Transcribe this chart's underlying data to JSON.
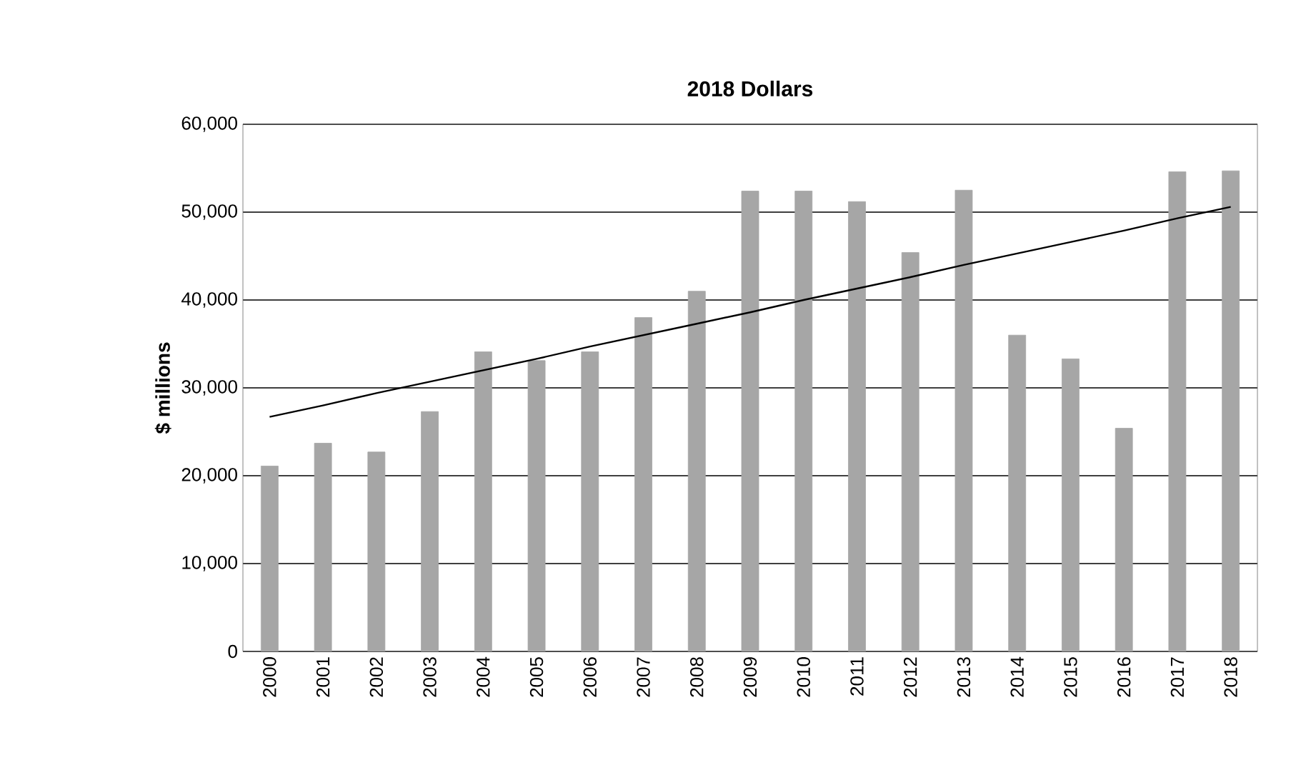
{
  "chart_data": {
    "type": "bar",
    "title": "2018 Dollars",
    "ylabel": "$ millions",
    "categories": [
      "2000",
      "2001",
      "2002",
      "2003",
      "2004",
      "2005",
      "2006",
      "2007",
      "2008",
      "2009",
      "2010",
      "2011",
      "2012",
      "2013",
      "2014",
      "2015",
      "2016",
      "2017",
      "2018"
    ],
    "series": [
      {
        "type": "bar",
        "color": "#a6a6a6",
        "values": [
          21100,
          23700,
          22700,
          27300,
          34100,
          33100,
          34100,
          38000,
          41000,
          52400,
          52400,
          51200,
          45400,
          52500,
          36000,
          33300,
          25400,
          54600,
          54700
        ]
      },
      {
        "type": "line",
        "color": "#000000",
        "values": [
          26700,
          28000,
          29400,
          30700,
          32000,
          33300,
          34700,
          36000,
          37300,
          38600,
          40000,
          41300,
          42600,
          44000,
          45300,
          46600,
          47900,
          49300,
          50600
        ]
      }
    ],
    "ylim": [
      0,
      60000
    ],
    "yticks": [
      {
        "value": 0,
        "label": "0"
      },
      {
        "value": 10000,
        "label": "10,000"
      },
      {
        "value": 20000,
        "label": "20,000"
      },
      {
        "value": 30000,
        "label": "30,000"
      },
      {
        "value": 40000,
        "label": "40,000"
      },
      {
        "value": 50000,
        "label": "50,000"
      },
      {
        "value": 60000,
        "label": "60,000"
      }
    ],
    "grid": "y"
  }
}
